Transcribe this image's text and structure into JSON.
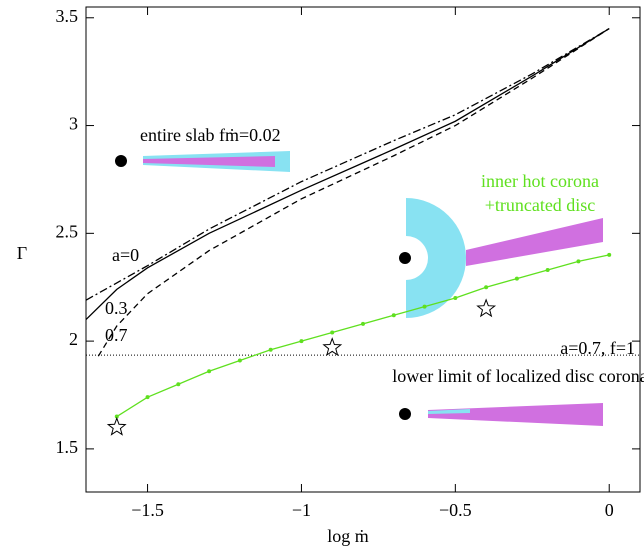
{
  "chart_data": {
    "type": "line",
    "x_label": "log ṁ",
    "y_label": "Γ",
    "xlim": [
      -1.7,
      0.1
    ],
    "ylim": [
      1.3,
      3.55
    ],
    "xticks": [
      {
        "value": -1.5,
        "label": "−1.5"
      },
      {
        "value": -1,
        "label": "−1"
      },
      {
        "value": -0.5,
        "label": "−0.5"
      },
      0
    ],
    "yticks": [
      1.5,
      2,
      2.5,
      3,
      3.5
    ],
    "series": [
      {
        "name": "a=0",
        "color": "#000000",
        "dash": "solid",
        "x": [
          -1.7,
          -1.6,
          -1.5,
          -1.3,
          -1,
          -0.7,
          -0.5,
          -0.25,
          0
        ],
        "values": [
          2.1,
          2.24,
          2.34,
          2.5,
          2.7,
          2.89,
          3.02,
          3.23,
          3.45
        ]
      },
      {
        "name": "0.3",
        "color": "#000000",
        "dash": "dashdot",
        "x": [
          -1.7,
          -1.6,
          -1.5,
          -1.3,
          -1,
          -0.7,
          -0.5,
          -0.25,
          0
        ],
        "values": [
          2.19,
          2.27,
          2.35,
          2.52,
          2.74,
          2.93,
          3.05,
          3.24,
          3.45
        ]
      },
      {
        "name": "0.7",
        "color": "#000000",
        "dash": "dashed",
        "x": [
          -1.66,
          -1.6,
          -1.5,
          -1.3,
          -1,
          -0.7,
          -0.5,
          -0.25,
          0
        ],
        "values": [
          1.93,
          2.07,
          2.22,
          2.42,
          2.66,
          2.86,
          3.0,
          3.22,
          3.45
        ]
      },
      {
        "color": "#5fe01f",
        "dash": "solid",
        "marker": "dot",
        "x": [
          -1.6,
          -1.5,
          -1.4,
          -1.3,
          -1.2,
          -1.1,
          -1.0,
          -0.9,
          -0.8,
          -0.7,
          -0.6,
          -0.5,
          -0.4,
          -0.3,
          -0.2,
          -0.1,
          0
        ],
        "values": [
          1.65,
          1.74,
          1.8,
          1.86,
          1.91,
          1.96,
          2.0,
          2.04,
          2.08,
          2.12,
          2.16,
          2.2,
          2.25,
          2.29,
          2.33,
          2.37,
          2.4
        ]
      },
      {
        "color": "#000000",
        "dash": "none",
        "marker": "star",
        "x": [
          -1.6,
          -0.9,
          -0.4
        ],
        "values": [
          1.6,
          1.97,
          2.15
        ]
      }
    ],
    "hline": {
      "value": 1.935,
      "dash": "dotted",
      "labels": [
        "a=0.7, f=1",
        "lower limit of localized disc corona"
      ]
    },
    "annotations": [
      "entire slab  fṁ=0.02",
      "inner hot corona",
      "+truncated disc"
    ]
  }
}
